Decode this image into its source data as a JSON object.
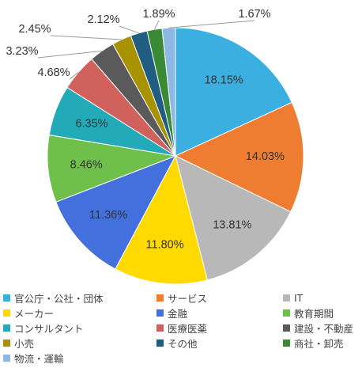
{
  "chart_data": {
    "type": "pie",
    "categories": [
      "官公庁・公社・団体",
      "サービス",
      "IT",
      "メーカー",
      "金融",
      "教育期間",
      "コンサルタント",
      "医療医薬",
      "建設・不動産",
      "小売",
      "その他",
      "商社・卸売",
      "物流・運輸"
    ],
    "values": [
      18.15,
      14.03,
      13.81,
      11.8,
      11.36,
      8.46,
      6.35,
      4.68,
      3.23,
      2.45,
      2.12,
      1.89,
      1.67
    ],
    "labels": [
      "18.15%",
      "14.03%",
      "13.81%",
      "11.80%",
      "11.36%",
      "8.46%",
      "6.35%",
      "4.68%",
      "3.23%",
      "2.45%",
      "2.12%",
      "1.89%",
      "1.67%"
    ],
    "colors": [
      "#3aafe0",
      "#ef7d31",
      "#b8b8b8",
      "#ffda00",
      "#4470dd",
      "#6ec04a",
      "#22aab9",
      "#d0615d",
      "#5a5a5a",
      "#a89200",
      "#205d80",
      "#3a8a35",
      "#8db8e3"
    ],
    "legend_position": "bottom"
  }
}
